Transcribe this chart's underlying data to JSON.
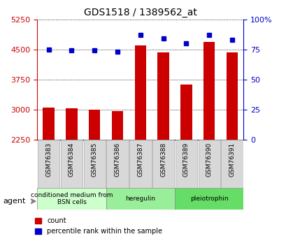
{
  "title": "GDS1518 / 1389562_at",
  "categories": [
    "GSM76383",
    "GSM76384",
    "GSM76385",
    "GSM76386",
    "GSM76387",
    "GSM76388",
    "GSM76389",
    "GSM76390",
    "GSM76391"
  ],
  "counts": [
    3050,
    3030,
    3000,
    2960,
    4600,
    4430,
    3620,
    4680,
    4420
  ],
  "percentiles": [
    75,
    74,
    74,
    73,
    87,
    84,
    80,
    87,
    83
  ],
  "baseline": 2250,
  "ylim_left": [
    2250,
    5250
  ],
  "ylim_right": [
    0,
    100
  ],
  "yticks_left": [
    2250,
    3000,
    3750,
    4500,
    5250
  ],
  "yticks_right": [
    0,
    25,
    50,
    75,
    100
  ],
  "bar_color": "#cc0000",
  "dot_color": "#0000cc",
  "groups": [
    {
      "label": "conditioned medium from\nBSN cells",
      "start": 0,
      "end": 3,
      "color": "#ccffcc"
    },
    {
      "label": "heregulin",
      "start": 3,
      "end": 6,
      "color": "#99ee99"
    },
    {
      "label": "pleiotrophin",
      "start": 6,
      "end": 9,
      "color": "#66dd66"
    }
  ],
  "agent_label": "agent",
  "legend_count_label": "count",
  "legend_pct_label": "percentile rank within the sample",
  "background_color": "#f0f0f0",
  "plot_bg": "#ffffff",
  "left_axis_color": "#cc0000",
  "right_axis_color": "#0000cc"
}
